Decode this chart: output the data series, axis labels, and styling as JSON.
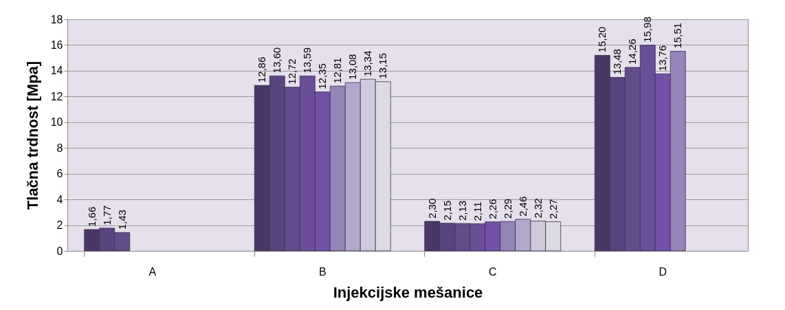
{
  "chart_data": {
    "type": "bar",
    "xlabel": "Injekcijske mešanice",
    "ylabel": "Tlačna trdnost [Mpa]",
    "categories": [
      "A",
      "B",
      "C",
      "D"
    ],
    "series": [
      {
        "color": "#4a3766",
        "values": [
          1.66,
          12.86,
          2.3,
          15.2
        ],
        "value_labels": [
          "1,66",
          "12,86",
          "2,30",
          "15,20"
        ]
      },
      {
        "color": "#5a4480",
        "values": [
          1.77,
          13.6,
          2.15,
          13.48
        ],
        "value_labels": [
          "1,77",
          "13,60",
          "2,15",
          "13,48"
        ]
      },
      {
        "color": "#634c8a",
        "values": [
          1.43,
          12.72,
          2.13,
          14.26
        ],
        "value_labels": [
          "1,43",
          "12,72",
          "2,13",
          "14,26"
        ]
      },
      {
        "color": "#6a4f98",
        "values": [
          null,
          13.59,
          2.11,
          15.98
        ],
        "value_labels": [
          null,
          "13,59",
          "2,11",
          "15,98"
        ]
      },
      {
        "color": "#7150a5",
        "values": [
          null,
          12.35,
          2.26,
          13.76
        ],
        "value_labels": [
          null,
          "12,35",
          "2,26",
          "13,76"
        ]
      },
      {
        "color": "#9484b8",
        "values": [
          null,
          12.81,
          2.29,
          15.51
        ],
        "value_labels": [
          null,
          "12,81",
          "2,29",
          "15,51"
        ]
      },
      {
        "color": "#b2a8cc",
        "values": [
          null,
          13.08,
          2.46,
          null
        ],
        "value_labels": [
          null,
          "13,08",
          "2,46",
          null
        ]
      },
      {
        "color": "#cfc9dd",
        "values": [
          null,
          13.34,
          2.32,
          null
        ],
        "value_labels": [
          null,
          "13,34",
          "2,32",
          null
        ]
      },
      {
        "color": "#dcdae4",
        "values": [
          null,
          13.15,
          2.27,
          null
        ],
        "value_labels": [
          null,
          "13,15",
          "2,27",
          null
        ]
      }
    ],
    "ylim": [
      0,
      18
    ],
    "yticks": [
      0,
      2,
      4,
      6,
      8,
      10,
      12,
      14,
      16,
      18
    ],
    "grid": "y",
    "legend": false
  }
}
